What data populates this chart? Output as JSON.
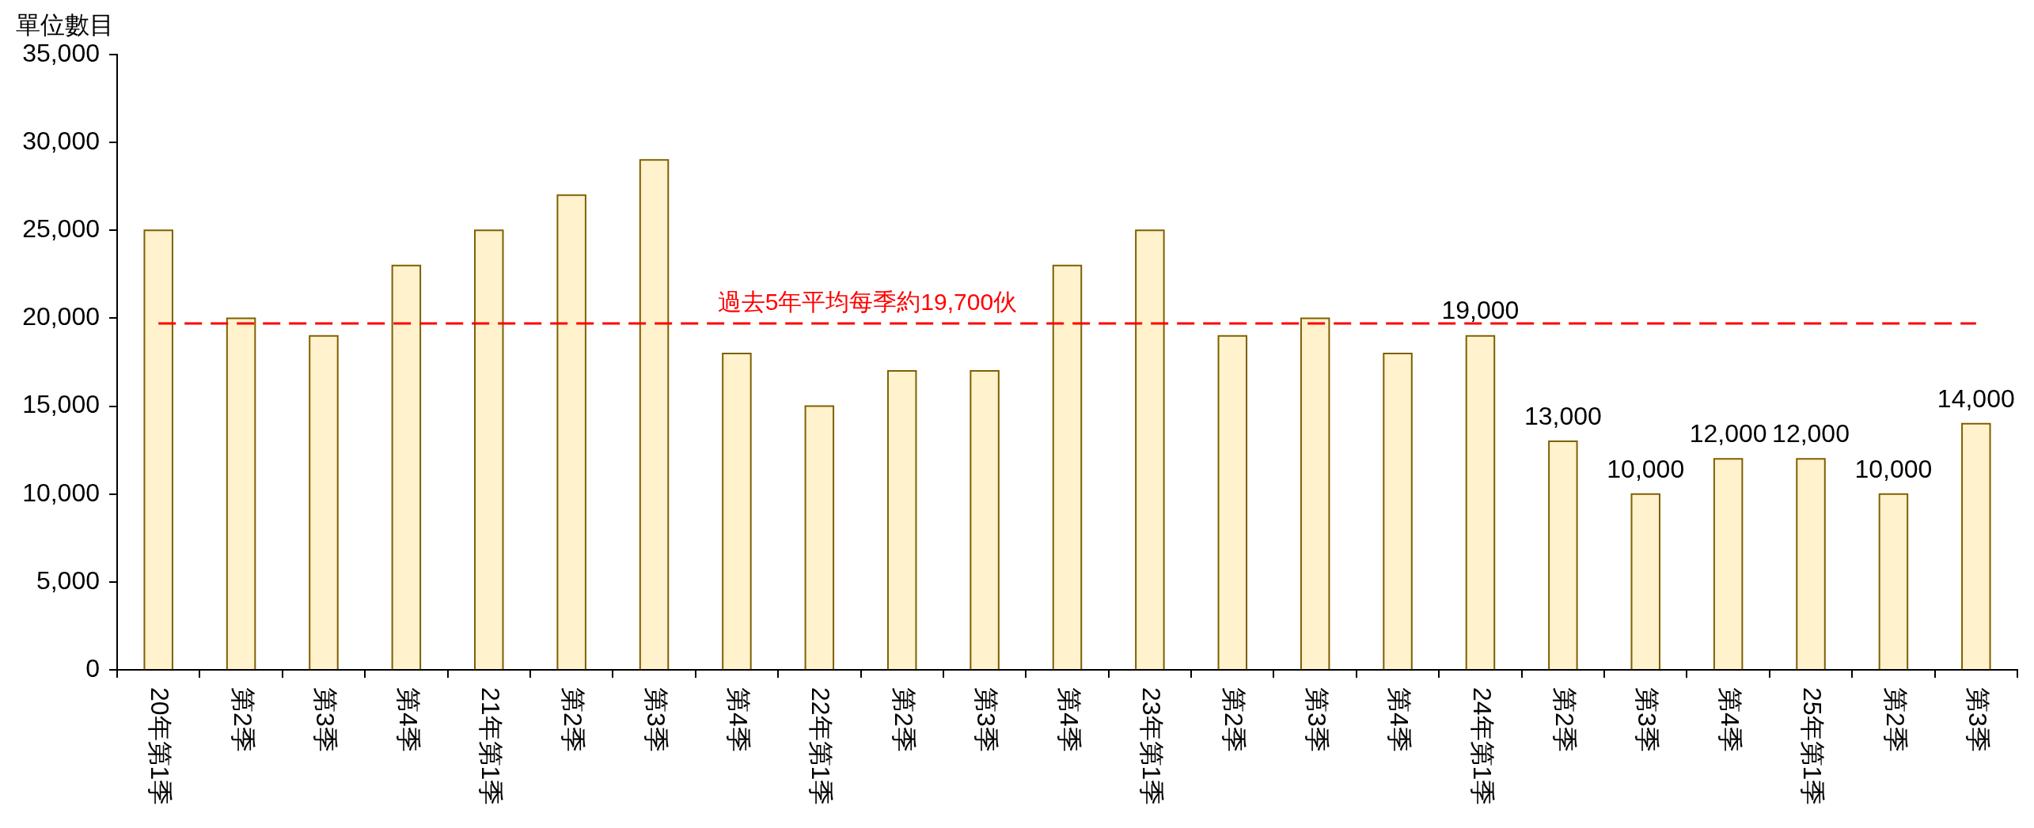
{
  "chart_data": {
    "type": "bar",
    "ylabel": "單位數目",
    "categories": [
      "20年第1季",
      "第2季",
      "第3季",
      "第4季",
      "21年第1季",
      "第2季",
      "第3季",
      "第4季",
      "22年第1季",
      "第2季",
      "第3季",
      "第4季",
      "23年第1季",
      "第2季",
      "第3季",
      "第4季",
      "24年第1季",
      "第2季",
      "第3季",
      "第4季",
      "25年第1季",
      "第2季",
      "第3季"
    ],
    "values": [
      25000,
      20000,
      19000,
      23000,
      25000,
      27000,
      29000,
      18000,
      15000,
      17000,
      17000,
      23000,
      25000,
      19000,
      20000,
      18000,
      19000,
      13000,
      10000,
      12000,
      12000,
      10000,
      14000
    ],
    "value_labels": [
      null,
      null,
      null,
      null,
      null,
      null,
      null,
      null,
      null,
      null,
      null,
      null,
      null,
      null,
      null,
      null,
      "19,000",
      "13,000",
      "10,000",
      "12,000",
      "12,000",
      "10,000",
      "14,000"
    ],
    "color": "#fff2cc",
    "ylim": [
      0,
      35000
    ],
    "yticks": [
      0,
      {
        "value": 5000,
        "label": "5,000"
      },
      {
        "value": 10000,
        "label": "10,000"
      },
      {
        "value": 15000,
        "label": "15,000"
      },
      {
        "value": 20000,
        "label": "20,000"
      },
      {
        "value": 25000,
        "label": "25,000"
      },
      {
        "value": 30000,
        "label": "30,000"
      },
      {
        "value": 35000,
        "label": "35,000"
      }
    ],
    "ref_lines": [
      {
        "axis": "y",
        "value": 19700,
        "label": "過去5年平均每季約19,700伙",
        "color": "#ff0000",
        "line_style": "dashed"
      }
    ]
  }
}
